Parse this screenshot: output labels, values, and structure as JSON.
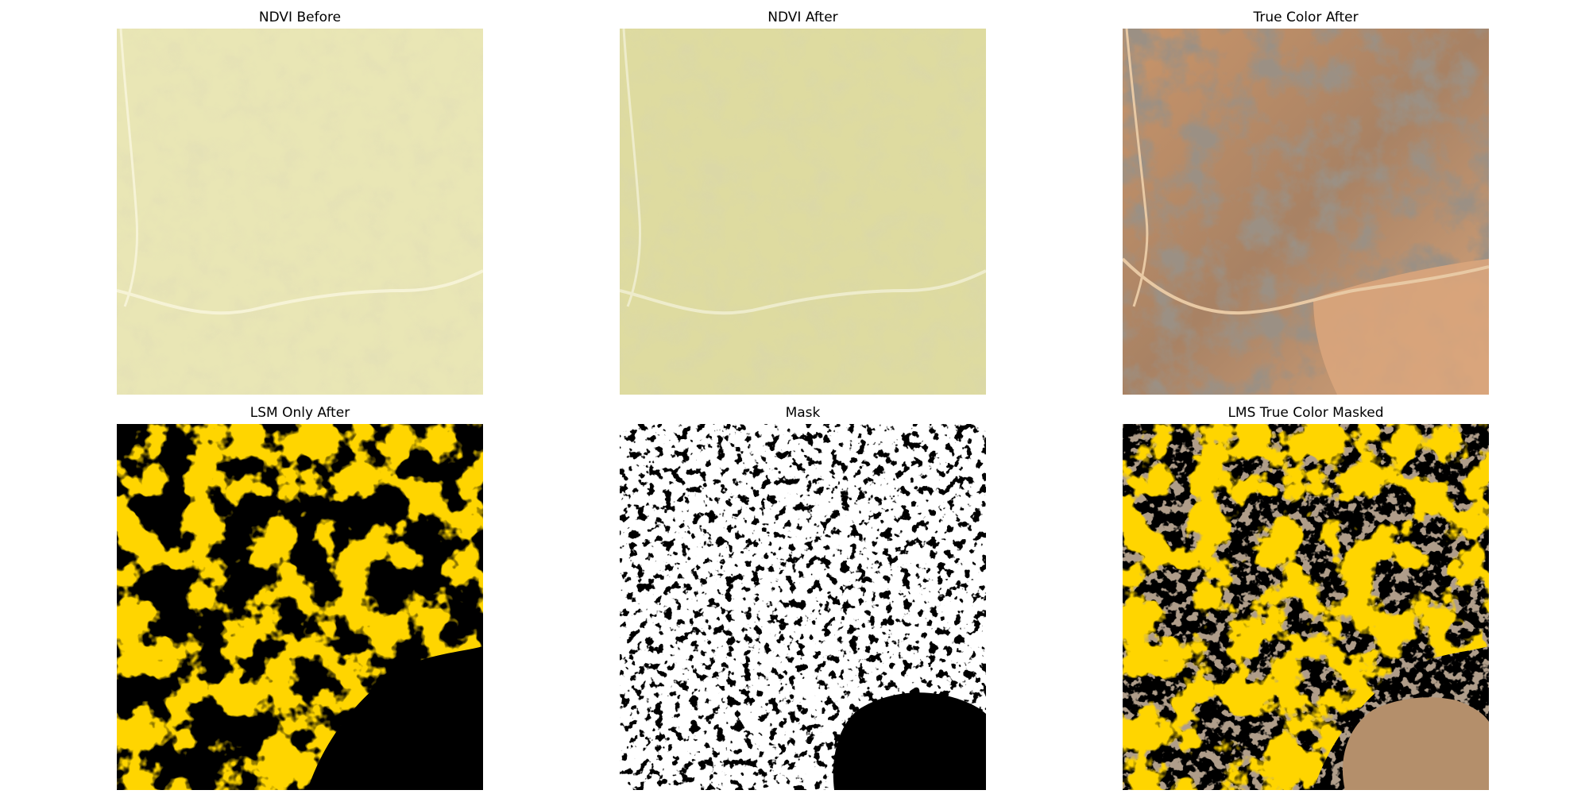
{
  "figure": {
    "panels": [
      {
        "id": "ndvi-before",
        "title": "NDVI Before"
      },
      {
        "id": "ndvi-after",
        "title": "NDVI After"
      },
      {
        "id": "true-color-after",
        "title": "True Color After"
      },
      {
        "id": "lsm-only-after",
        "title": "LSM Only After"
      },
      {
        "id": "mask",
        "title": "Mask"
      },
      {
        "id": "lms-true-color-masked",
        "title": "LMS True Color Masked"
      }
    ],
    "colors": {
      "ndvi_before_base": "#e9e6b5",
      "ndvi_after_base": "#dedba0",
      "ndvi_shade": "#bfb978",
      "true_color_base": "#c9956a",
      "true_color_dark": "#5b4d3f",
      "true_color_light": "#e8c9a4",
      "lsm_orange": "#ffaa00",
      "black": "#000000",
      "white": "#ffffff",
      "masked_tan": "#b48f6b"
    }
  }
}
